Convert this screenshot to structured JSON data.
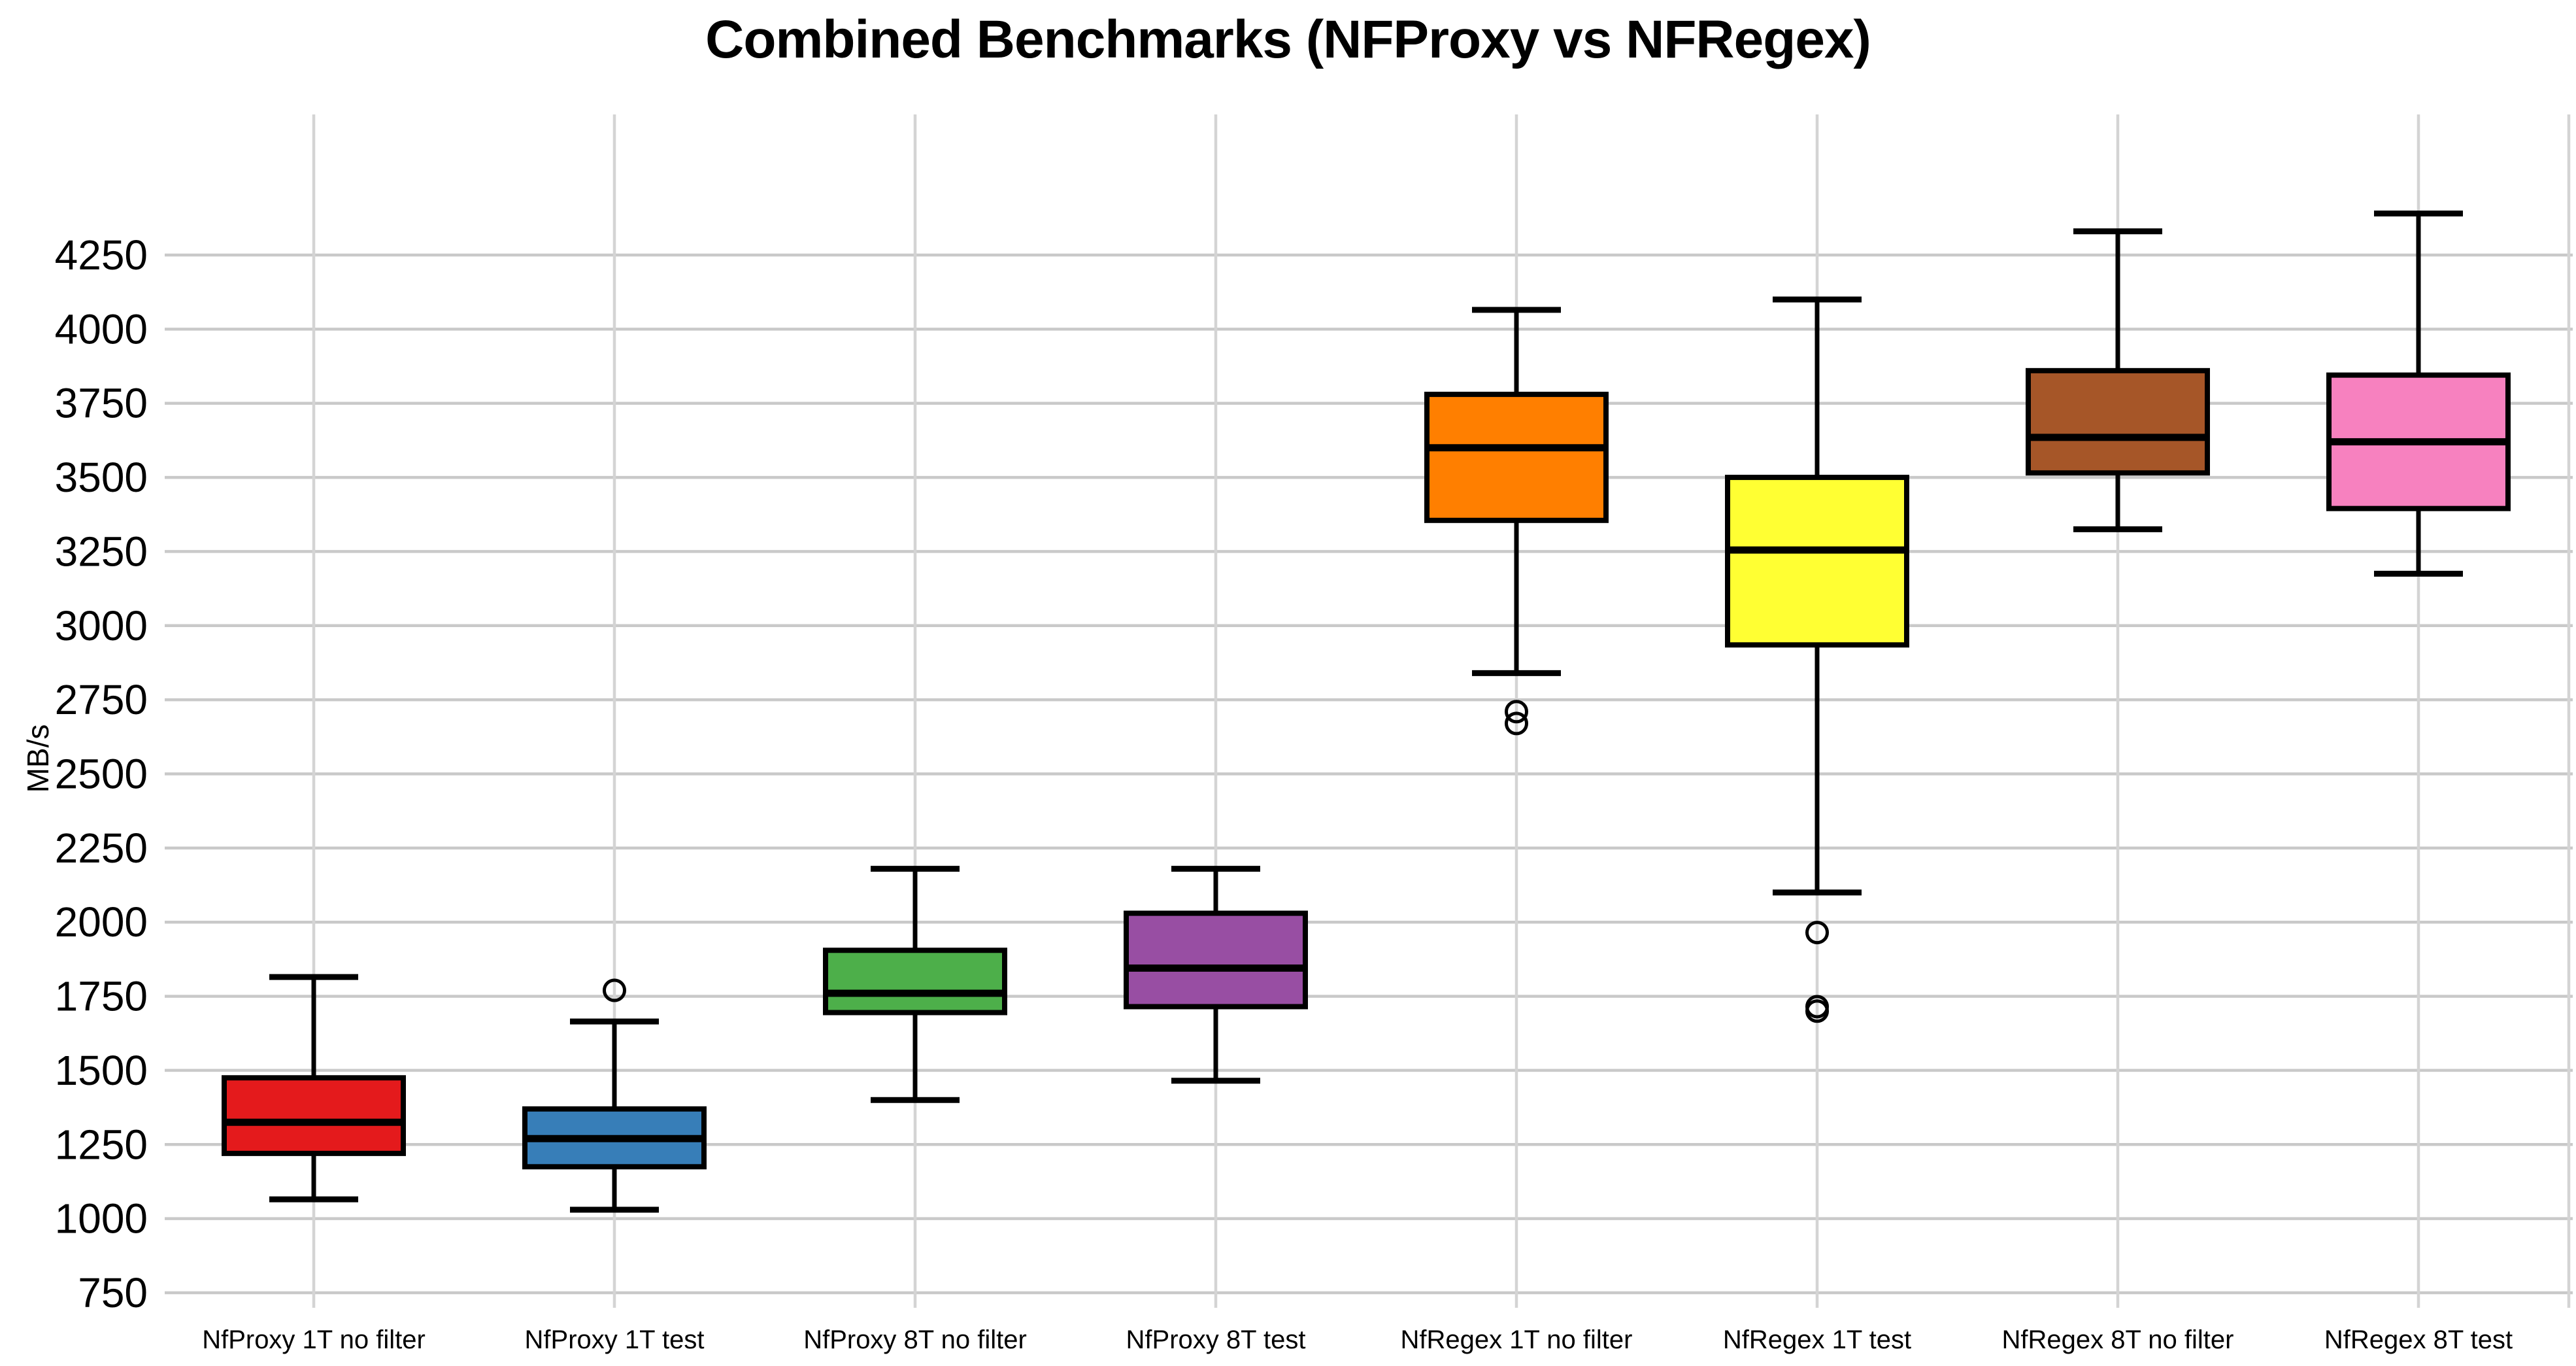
{
  "chart_data": {
    "type": "boxplot",
    "title": "Combined Benchmarks (NFProxy vs NFRegex)",
    "xlabel": "",
    "ylabel": "MB/s",
    "ylim": [
      700,
      4700
    ],
    "y_ticks": [
      750,
      1000,
      1250,
      1500,
      1750,
      2000,
      2250,
      2500,
      2750,
      3000,
      3250,
      3500,
      3750,
      4000,
      4250
    ],
    "grid": {
      "horizontal": true,
      "vertical": true
    },
    "legend": "none",
    "categories": [
      "NfProxy 1T no filter",
      "NfProxy 1T test",
      "NfProxy 8T no filter",
      "NfProxy 8T test",
      "NfRegex 1T no filter",
      "NfRegex 1T test",
      "NfRegex 8T no filter",
      "NfRegex 8T test"
    ],
    "series": [
      {
        "label": "NfProxy 1T no filter",
        "color": "#e41a1c",
        "whisker_low": 1065,
        "q1": 1220,
        "median": 1325,
        "q3": 1475,
        "whisker_high": 1815,
        "outliers": []
      },
      {
        "label": "NfProxy 1T test",
        "color": "#377eb8",
        "whisker_low": 1030,
        "q1": 1175,
        "median": 1270,
        "q3": 1370,
        "whisker_high": 1665,
        "outliers": [
          1770
        ]
      },
      {
        "label": "NfProxy 8T no filter",
        "color": "#4daf4a",
        "whisker_low": 1400,
        "q1": 1695,
        "median": 1760,
        "q3": 1905,
        "whisker_high": 2180,
        "outliers": []
      },
      {
        "label": "NfProxy 8T test",
        "color": "#984ea3",
        "whisker_low": 1465,
        "q1": 1715,
        "median": 1845,
        "q3": 2030,
        "whisker_high": 2180,
        "outliers": []
      },
      {
        "label": "NfRegex 1T no filter",
        "color": "#ff7f00",
        "whisker_low": 2840,
        "q1": 3355,
        "median": 3600,
        "q3": 3780,
        "whisker_high": 4065,
        "outliers": [
          2710,
          2670
        ]
      },
      {
        "label": "NfRegex 1T test",
        "color": "#ffff33",
        "whisker_low": 2100,
        "q1": 2935,
        "median": 3255,
        "q3": 3500,
        "whisker_high": 4100,
        "outliers": [
          1965,
          1715,
          1700
        ]
      },
      {
        "label": "NfRegex 8T no filter",
        "color": "#a65628",
        "whisker_low": 3325,
        "q1": 3515,
        "median": 3635,
        "q3": 3860,
        "whisker_high": 4330,
        "outliers": []
      },
      {
        "label": "NfRegex 8T test",
        "color": "#f781bf",
        "whisker_low": 3175,
        "q1": 3395,
        "median": 3620,
        "q3": 3845,
        "whisker_high": 4390,
        "outliers": []
      }
    ],
    "colors": {
      "grid_horizontal": "#c9c9c9",
      "grid_vertical": "#d4d4d4",
      "box_edge": "#000000",
      "text": "#000000",
      "background": "#ffffff"
    }
  }
}
